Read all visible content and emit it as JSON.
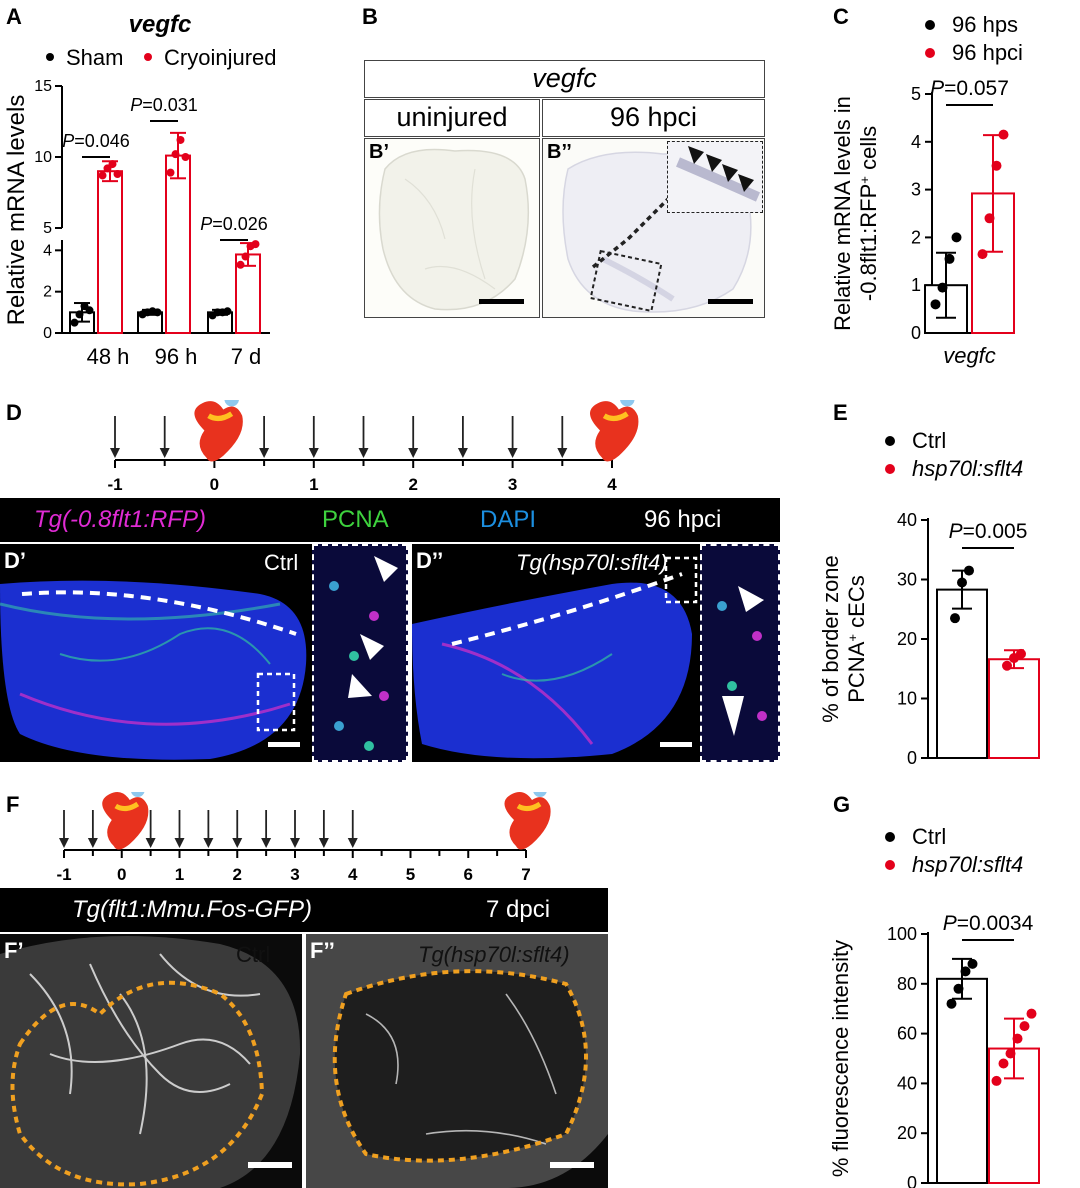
{
  "panel_labels": {
    "A": "A",
    "B": "B",
    "C": "C",
    "D": "D",
    "E": "E",
    "F": "F",
    "G": "G",
    "B1": "B’",
    "B2": "B’’",
    "D1": "D’",
    "D2": "D’’",
    "F1": "F’",
    "F2": "F’’"
  },
  "colors": {
    "sham": "#000000",
    "cryo": "#e3001b",
    "red": "#e3001b",
    "magenta": "#e02bd4",
    "green": "#3ed23e",
    "blue": "#1c8fe0",
    "orange": "#f0a020"
  },
  "panel_B": {
    "header": "vegfc",
    "left_label": "uninjured",
    "right_label": "96 hpci"
  },
  "panel_D": {
    "timeline_ticks": [
      "-1",
      "0",
      "1",
      "2",
      "3",
      "4"
    ],
    "bar": {
      "label_rfp": "Tg(-0.8flt1:RFP)",
      "label_pcna": "PCNA",
      "label_dapi": "DAPI",
      "label_time": "96 hpci"
    },
    "left_condition": "Ctrl",
    "right_condition": "Tg(hsp70l:sflt4)"
  },
  "panel_F": {
    "timeline_ticks": [
      "-1",
      "0",
      "1",
      "2",
      "3",
      "4",
      "5",
      "6",
      "7"
    ],
    "bar": {
      "label_line": "Tg(flt1:Mmu.Fos-GFP)",
      "label_time": "7 dpci"
    },
    "left_condition": "Ctrl",
    "right_condition": "Tg(hsp70l:sflt4)"
  },
  "chart_data": [
    {
      "id": "A",
      "type": "bar",
      "title": "vegfc",
      "legend": [
        "Sham",
        "Cryoinjured"
      ],
      "categories": [
        "48 h",
        "96 h",
        "7 d"
      ],
      "ylabel": "Relative mRNA levels",
      "yticks_lower": [
        "0",
        "2",
        "4"
      ],
      "yticks_upper": [
        "5",
        "10",
        "15"
      ],
      "y_break": [
        4.5,
        5
      ],
      "series": [
        {
          "name": "Sham",
          "means": [
            1.0,
            1.0,
            1.0
          ],
          "sd": [
            0.45,
            0.12,
            0.12
          ],
          "points": [
            [
              0.5,
              0.9,
              1.3,
              1.1
            ],
            [
              0.9,
              1.0,
              1.05,
              1.0
            ],
            [
              0.85,
              1.0,
              1.0,
              1.05
            ]
          ]
        },
        {
          "name": "Cryoinjured",
          "means": [
            9.0,
            10.1,
            3.8
          ],
          "sd": [
            0.7,
            1.6,
            0.55
          ],
          "points": [
            [
              8.7,
              9.2,
              9.5,
              8.8
            ],
            [
              8.9,
              10.2,
              11.2,
              10.0
            ],
            [
              3.3,
              3.7,
              4.2,
              4.3
            ]
          ]
        }
      ],
      "pvalues": [
        "P=0.046",
        "P=0.031",
        "P=0.026"
      ]
    },
    {
      "id": "C",
      "type": "bar",
      "legend": [
        "96 hps",
        "96 hpci"
      ],
      "categories": [
        "vegfc"
      ],
      "ylabel_line1": "Relative mRNA levels in",
      "ylabel_line2": "-0.8flt1:RFP+ cells",
      "ylim": [
        0,
        5
      ],
      "yticks": [
        "0",
        "1",
        "2",
        "3",
        "4",
        "5"
      ],
      "series": [
        {
          "name": "96 hps",
          "mean": 1.0,
          "sd": 0.68,
          "points": [
            0.6,
            0.95,
            1.55,
            2.0
          ]
        },
        {
          "name": "96 hpci",
          "mean": 2.92,
          "sd": 1.22,
          "points": [
            1.65,
            2.4,
            3.5,
            4.15
          ]
        }
      ],
      "pvalue": "P=0.057"
    },
    {
      "id": "E",
      "type": "bar",
      "legend": [
        "Ctrl",
        "hsp70l:sflt4"
      ],
      "ylabel_line1": "% of border zone",
      "ylabel_line2": "PCNA+ cECs",
      "ylim": [
        0,
        40
      ],
      "yticks": [
        "0",
        "10",
        "20",
        "30",
        "40"
      ],
      "series": [
        {
          "name": "Ctrl",
          "mean": 28.3,
          "sd": 3.2,
          "points": [
            23.5,
            29.5,
            31.5
          ]
        },
        {
          "name": "hsp70l:sflt4",
          "mean": 16.6,
          "sd": 1.5,
          "points": [
            15.5,
            16.8,
            17.5
          ]
        }
      ],
      "pvalue": "P=0.005"
    },
    {
      "id": "G",
      "type": "bar",
      "legend": [
        "Ctrl",
        "hsp70l:sflt4"
      ],
      "ylabel": "% fluorescence intensity",
      "ylim": [
        0,
        100
      ],
      "yticks": [
        "0",
        "20",
        "40",
        "60",
        "80",
        "100"
      ],
      "series": [
        {
          "name": "Ctrl",
          "mean": 82,
          "sd": 8,
          "points": [
            72,
            78,
            85,
            88
          ]
        },
        {
          "name": "hsp70l:sflt4",
          "mean": 54,
          "sd": 12,
          "points": [
            41,
            48,
            52,
            58,
            63,
            68
          ]
        }
      ],
      "pvalue": "P=0.0034"
    }
  ]
}
